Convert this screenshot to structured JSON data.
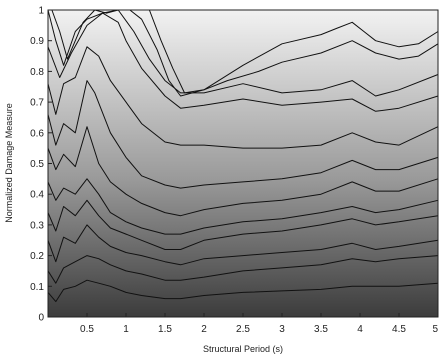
{
  "chart_data": {
    "type": "contour",
    "title": "",
    "xlabel": "Structural Period (s)",
    "ylabel": "Normalized Damage Measure",
    "xlim": [
      0,
      5
    ],
    "ylim": [
      0,
      1
    ],
    "xticks": [
      {
        "value": 0.5,
        "label": "0.5"
      },
      {
        "value": 1,
        "label": "1"
      },
      {
        "value": 1.5,
        "label": "1.5"
      },
      {
        "value": 2,
        "label": "2"
      },
      {
        "value": 2.5,
        "label": "2.5"
      },
      {
        "value": 3,
        "label": "3"
      },
      {
        "value": 3.5,
        "label": "3.5"
      },
      {
        "value": 4,
        "label": "4"
      },
      {
        "value": 4.5,
        "label": "4.5"
      },
      {
        "value": 5,
        "label": "5"
      }
    ],
    "yticks": [
      {
        "value": 0,
        "label": "0"
      },
      {
        "value": 0.1,
        "label": "0.1"
      },
      {
        "value": 0.2,
        "label": "0.2"
      },
      {
        "value": 0.3,
        "label": "0.3"
      },
      {
        "value": 0.4,
        "label": "0.4"
      },
      {
        "value": 0.5,
        "label": "0.5"
      },
      {
        "value": 0.6,
        "label": "0.6"
      },
      {
        "value": 0.7,
        "label": "0.7"
      },
      {
        "value": 0.8,
        "label": "0.8"
      },
      {
        "value": 0.9,
        "label": "0.9"
      },
      {
        "value": 1,
        "label": "1"
      }
    ],
    "colormap": "gray",
    "background_gradient": [
      "#3c3c3c",
      "#9a9a9a",
      "#f2f2f2"
    ],
    "line_color": "#111111",
    "contour_lines": [
      {
        "x": [
          0,
          0.1,
          0.2,
          0.35,
          0.5,
          0.65,
          0.8,
          1.0,
          1.2,
          1.5,
          1.7,
          2.0,
          2.5,
          3.0,
          3.5,
          3.9,
          4.2,
          4.5,
          5.0
        ],
        "y": [
          0.08,
          0.05,
          0.09,
          0.1,
          0.12,
          0.11,
          0.1,
          0.08,
          0.07,
          0.06,
          0.06,
          0.07,
          0.08,
          0.085,
          0.09,
          0.1,
          0.1,
          0.1,
          0.11
        ]
      },
      {
        "x": [
          0,
          0.1,
          0.2,
          0.35,
          0.5,
          0.65,
          0.8,
          1.0,
          1.2,
          1.5,
          1.7,
          2.0,
          2.5,
          3.0,
          3.5,
          3.9,
          4.2,
          4.5,
          5.0
        ],
        "y": [
          0.15,
          0.11,
          0.16,
          0.18,
          0.2,
          0.19,
          0.17,
          0.15,
          0.14,
          0.12,
          0.12,
          0.13,
          0.15,
          0.16,
          0.17,
          0.19,
          0.18,
          0.19,
          0.2
        ]
      },
      {
        "x": [
          0,
          0.1,
          0.2,
          0.35,
          0.5,
          0.65,
          0.8,
          1.0,
          1.2,
          1.5,
          1.7,
          2.0,
          2.5,
          3.0,
          3.5,
          3.9,
          4.2,
          4.5,
          5.0
        ],
        "y": [
          0.25,
          0.18,
          0.26,
          0.24,
          0.3,
          0.26,
          0.23,
          0.21,
          0.2,
          0.18,
          0.17,
          0.19,
          0.2,
          0.21,
          0.22,
          0.24,
          0.22,
          0.23,
          0.25
        ]
      },
      {
        "x": [
          0,
          0.1,
          0.2,
          0.35,
          0.5,
          0.65,
          0.8,
          1.0,
          1.2,
          1.5,
          1.7,
          2.0,
          2.5,
          3.0,
          3.5,
          3.9,
          4.2,
          4.5,
          5.0
        ],
        "y": [
          0.34,
          0.28,
          0.36,
          0.33,
          0.38,
          0.33,
          0.29,
          0.27,
          0.25,
          0.22,
          0.22,
          0.25,
          0.27,
          0.28,
          0.3,
          0.32,
          0.3,
          0.31,
          0.33
        ]
      },
      {
        "x": [
          0,
          0.1,
          0.2,
          0.35,
          0.5,
          0.65,
          0.8,
          1.0,
          1.2,
          1.5,
          1.7,
          2.0,
          2.5,
          3.0,
          3.5,
          3.9,
          4.2,
          4.5,
          5.0
        ],
        "y": [
          0.44,
          0.38,
          0.42,
          0.4,
          0.45,
          0.4,
          0.34,
          0.31,
          0.29,
          0.27,
          0.27,
          0.29,
          0.31,
          0.32,
          0.34,
          0.36,
          0.34,
          0.35,
          0.38
        ]
      },
      {
        "x": [
          0,
          0.1,
          0.2,
          0.35,
          0.5,
          0.65,
          0.8,
          1.0,
          1.2,
          1.5,
          1.7,
          2.0,
          2.5,
          3.0,
          3.5,
          3.9,
          4.2,
          4.5,
          5.0
        ],
        "y": [
          0.55,
          0.48,
          0.53,
          0.49,
          0.62,
          0.5,
          0.44,
          0.4,
          0.37,
          0.34,
          0.33,
          0.35,
          0.37,
          0.38,
          0.4,
          0.44,
          0.41,
          0.41,
          0.45
        ]
      },
      {
        "x": [
          0,
          0.1,
          0.2,
          0.35,
          0.5,
          0.6,
          0.8,
          1.0,
          1.2,
          1.5,
          1.7,
          2.0,
          2.5,
          3.0,
          3.5,
          3.9,
          4.2,
          4.5,
          5.0
        ],
        "y": [
          0.66,
          0.56,
          0.63,
          0.6,
          0.77,
          0.73,
          0.6,
          0.52,
          0.46,
          0.43,
          0.42,
          0.43,
          0.44,
          0.45,
          0.47,
          0.51,
          0.48,
          0.48,
          0.52
        ]
      },
      {
        "x": [
          0,
          0.1,
          0.2,
          0.35,
          0.5,
          0.65,
          0.8,
          1.0,
          1.2,
          1.5,
          1.7,
          2.0,
          2.5,
          3.0,
          3.5,
          3.9,
          4.2,
          4.5,
          5.0
        ],
        "y": [
          0.76,
          0.66,
          0.76,
          0.78,
          0.88,
          0.85,
          0.77,
          0.7,
          0.63,
          0.57,
          0.56,
          0.56,
          0.55,
          0.55,
          0.56,
          0.6,
          0.57,
          0.56,
          0.62
        ]
      },
      {
        "x": [
          0,
          0.15,
          0.3,
          0.5,
          0.7,
          0.9,
          1.0,
          1.2,
          1.5,
          1.7,
          2.0,
          2.5,
          3.0,
          3.5,
          3.9,
          4.2,
          4.5,
          5.0
        ],
        "y": [
          0.88,
          0.78,
          0.86,
          0.95,
          0.99,
          0.96,
          0.9,
          0.81,
          0.72,
          0.68,
          0.69,
          0.71,
          0.69,
          0.7,
          0.71,
          0.67,
          0.68,
          0.72
        ]
      },
      {
        "x": [
          0,
          0.1,
          0.2,
          0.35,
          0.5,
          0.7,
          0.9,
          1.1,
          1.3,
          1.5,
          1.7,
          2.0,
          2.5,
          3.0,
          3.5,
          3.9,
          4.2,
          4.5,
          5.0
        ],
        "y": [
          1.0,
          0.9,
          0.82,
          0.93,
          0.97,
          0.99,
          1.0,
          0.93,
          0.84,
          0.77,
          0.73,
          0.73,
          0.76,
          0.73,
          0.74,
          0.77,
          0.72,
          0.74,
          0.79
        ]
      },
      {
        "x": [
          0.05,
          0.15,
          0.25,
          0.35,
          0.45,
          0.6,
          0.75,
          0.9,
          1.05,
          1.2,
          1.4,
          1.55,
          1.7,
          2.0,
          2.3,
          2.7,
          3.0,
          3.5,
          3.9,
          4.2,
          4.5,
          4.75,
          5.0
        ],
        "y": [
          1.0,
          0.93,
          0.84,
          0.9,
          0.96,
          1.0,
          0.99,
          1.0,
          1.0,
          0.97,
          0.87,
          0.77,
          0.72,
          0.74,
          0.77,
          0.8,
          0.83,
          0.86,
          0.9,
          0.86,
          0.84,
          0.85,
          0.89
        ]
      },
      {
        "x": [
          1.3,
          1.45,
          1.6,
          1.75,
          2.0,
          2.5,
          3.0,
          3.5,
          3.7,
          3.9,
          4.05,
          4.2,
          4.5,
          4.75,
          5.0
        ],
        "y": [
          1.0,
          0.9,
          0.81,
          0.73,
          0.74,
          0.82,
          0.89,
          0.92,
          0.94,
          0.96,
          0.93,
          0.9,
          0.88,
          0.89,
          0.93
        ]
      }
    ]
  }
}
